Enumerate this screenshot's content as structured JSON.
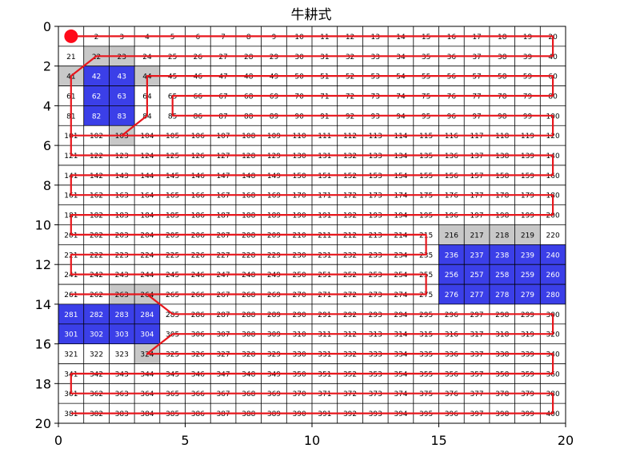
{
  "chart_data": {
    "type": "heatmap",
    "title": "牛耕式",
    "xlabel": "",
    "ylabel": "",
    "xlim": [
      0,
      20
    ],
    "ylim": [
      0,
      20
    ],
    "y_axis_direction": "reversed",
    "x_ticks": [
      "0",
      "5",
      "10",
      "15",
      "20"
    ],
    "y_ticks": [
      "0",
      "2",
      "4",
      "6",
      "8",
      "10",
      "12",
      "14",
      "16",
      "18",
      "20"
    ],
    "grid": {
      "cols": 20,
      "rows": 20
    },
    "cell_numbering": "row-major, 1 to 400",
    "obstacle_cells": [
      42,
      43,
      62,
      63,
      82,
      83,
      236,
      237,
      238,
      239,
      240,
      256,
      257,
      258,
      259,
      260,
      276,
      277,
      278,
      279,
      280,
      281,
      282,
      283,
      284,
      301,
      302,
      303,
      304
    ],
    "inflated_cells": [
      22,
      23,
      41,
      44,
      103,
      216,
      217,
      218,
      219,
      263,
      264,
      324
    ],
    "start_point": {
      "x": 0.5,
      "y": 0.5
    },
    "path": {
      "type": "line",
      "points": [
        [
          0.5,
          0.5
        ],
        [
          19.5,
          0.5
        ],
        [
          19.5,
          1.5
        ],
        [
          1.5,
          1.5
        ],
        [
          0.5,
          2.5
        ],
        [
          0.5,
          3.5
        ],
        [
          0.5,
          4.5
        ],
        [
          0.5,
          5.5
        ],
        [
          1.5,
          5.5
        ],
        [
          2.5,
          5.5
        ],
        [
          3.5,
          4.5
        ],
        [
          3.5,
          3.5
        ],
        [
          3.5,
          2.5
        ],
        [
          19.5,
          2.5
        ],
        [
          19.5,
          3.5
        ],
        [
          4.5,
          3.5
        ],
        [
          4.5,
          4.5
        ],
        [
          19.5,
          4.5
        ],
        [
          19.5,
          5.5
        ],
        [
          0.5,
          5.5
        ],
        [
          0.5,
          6.5
        ],
        [
          19.5,
          6.5
        ],
        [
          19.5,
          7.5
        ],
        [
          0.5,
          7.5
        ],
        [
          0.5,
          8.5
        ],
        [
          19.5,
          8.5
        ],
        [
          19.5,
          9.5
        ],
        [
          0.5,
          9.5
        ],
        [
          0.5,
          10.5
        ],
        [
          14.5,
          10.5
        ],
        [
          14.5,
          11.5
        ],
        [
          0.5,
          11.5
        ],
        [
          0.5,
          12.5
        ],
        [
          14.5,
          12.5
        ],
        [
          14.5,
          13.5
        ],
        [
          0.5,
          13.5
        ],
        [
          3.5,
          13.5
        ],
        [
          4.5,
          14.5
        ],
        [
          19.5,
          14.5
        ],
        [
          19.5,
          15.5
        ],
        [
          4.5,
          15.5
        ],
        [
          3.5,
          16.5
        ],
        [
          19.5,
          16.5
        ],
        [
          19.5,
          17.5
        ],
        [
          0.5,
          17.5
        ],
        [
          0.5,
          18.5
        ],
        [
          19.5,
          18.5
        ],
        [
          19.5,
          19.5
        ],
        [
          0.5,
          19.5
        ]
      ]
    },
    "colors": {
      "obstacle": "#3b3fe8",
      "inflated": "#c8c8c8",
      "free": "#ffffff",
      "path": "#e8161c",
      "start": "#ff0a1a",
      "grid_line": "#000000"
    }
  }
}
